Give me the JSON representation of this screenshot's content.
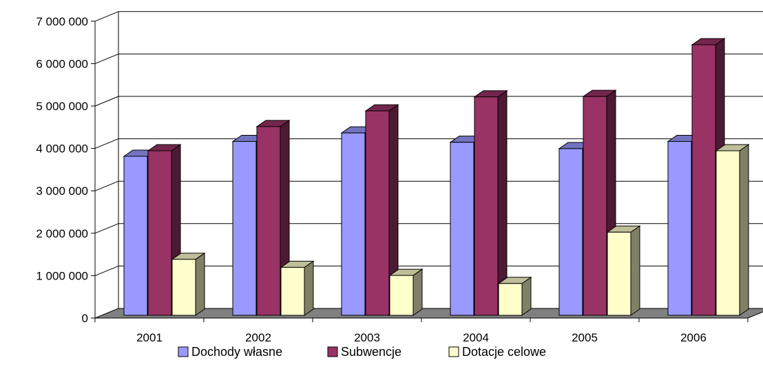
{
  "chart_data": {
    "type": "bar",
    "style": "3d-clustered-column",
    "categories": [
      "2001",
      "2002",
      "2003",
      "2004",
      "2005",
      "2006"
    ],
    "series": [
      {
        "name": "Dochody własne",
        "color": "#9999FF",
        "values": [
          3750000,
          4100000,
          4300000,
          4080000,
          3930000,
          4100000
        ]
      },
      {
        "name": "Subwencje",
        "color": "#993366",
        "values": [
          3880000,
          4450000,
          4820000,
          5150000,
          5160000,
          6380000
        ]
      },
      {
        "name": "Dotacje celowe",
        "color": "#FFFFCC",
        "values": [
          1320000,
          1130000,
          940000,
          750000,
          1960000,
          3880000
        ]
      }
    ],
    "yticks": [
      "0",
      "1 000 000",
      "2 000 000",
      "3 000 000",
      "4 000 000",
      "5 000 000",
      "6 000 000",
      "7 000 000"
    ],
    "ylim": [
      0,
      7000000
    ],
    "grid": true,
    "legend_position": "bottom",
    "title": "",
    "xlabel": "",
    "ylabel": ""
  }
}
